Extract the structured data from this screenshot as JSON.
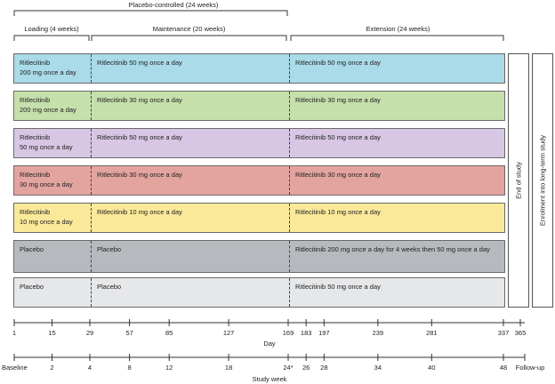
{
  "header": {
    "placebo_controlled": "Placebo-controlled (24 weeks)",
    "loading": "Loading (4 weeks)",
    "maintenance": "Maintenance (20 weeks)",
    "extension": "Extension (24 weeks)"
  },
  "arms": [
    {
      "color": "#a9dbe8",
      "loading": "Ritlecitinib\n200 mg once a day",
      "maintenance": "Ritlecitinib 50 mg once a day",
      "extension": "Ritlecitinib 50 mg once a day"
    },
    {
      "color": "#c5e0ab",
      "loading": "Ritlecitinib\n200 mg once a day",
      "maintenance": "Ritlecitinib 30 mg once a day",
      "extension": "Ritlecitinib 30 mg once a day"
    },
    {
      "color": "#d7c7e4",
      "loading": "Ritlecitinib\n50 mg once a day",
      "maintenance": "Ritlecitinib 50 mg once a day",
      "extension": "Ritlecitinib 50 mg once a day"
    },
    {
      "color": "#e3a49f",
      "loading": "Ritlecitinib\n30 mg once a day",
      "maintenance": "Ritlecitinib 30 mg once a day",
      "extension": "Ritlecitinib 30 mg once a day"
    },
    {
      "color": "#fbe99a",
      "loading": "Ritlecitinib\n10 mg once a day",
      "maintenance": "Ritlecitinib 10 mg once a day",
      "extension": "Ritlecitinib 10 mg once a day"
    },
    {
      "color": "#b6b9bd",
      "loading": "Placebo",
      "maintenance": "Placebo",
      "extension": "Ritlecitinib 200 mg once a day for 4 weeks then 50 mg once a day"
    },
    {
      "color": "#e6e7e9",
      "loading": "Placebo",
      "maintenance": "Placebo",
      "extension": "Ritlecitinib 50 mg once a day"
    }
  ],
  "end_of_study": "End of study",
  "enrolment": "Enrolment into long-term study",
  "day_axis": {
    "label": "Day",
    "ticks": [
      {
        "label": "1",
        "value": 1
      },
      {
        "label": "15",
        "value": 15
      },
      {
        "label": "29",
        "value": 29
      },
      {
        "label": "57",
        "value": 57
      },
      {
        "label": "85",
        "value": 85
      },
      {
        "label": "127",
        "value": 127
      },
      {
        "label": "169",
        "value": 169
      },
      {
        "label": "183",
        "value": 183
      },
      {
        "label": "197",
        "value": 197
      },
      {
        "label": "239",
        "value": 239
      },
      {
        "label": "281",
        "value": 281
      },
      {
        "label": "337",
        "value": 337
      },
      {
        "label": "365",
        "value": 365
      }
    ]
  },
  "week_axis": {
    "label": "Study week",
    "ticks": [
      {
        "label": "Baseline",
        "value": 0
      },
      {
        "label": "2",
        "value": 2
      },
      {
        "label": "4",
        "value": 4
      },
      {
        "label": "8",
        "value": 8
      },
      {
        "label": "12",
        "value": 12
      },
      {
        "label": "18",
        "value": 18
      },
      {
        "label": "24*",
        "value": 24
      },
      {
        "label": "26",
        "value": 26
      },
      {
        "label": "28",
        "value": 28
      },
      {
        "label": "34",
        "value": 34
      },
      {
        "label": "40",
        "value": 40
      },
      {
        "label": "48",
        "value": 48
      },
      {
        "label": "Follow-up",
        "value": 52
      }
    ]
  }
}
